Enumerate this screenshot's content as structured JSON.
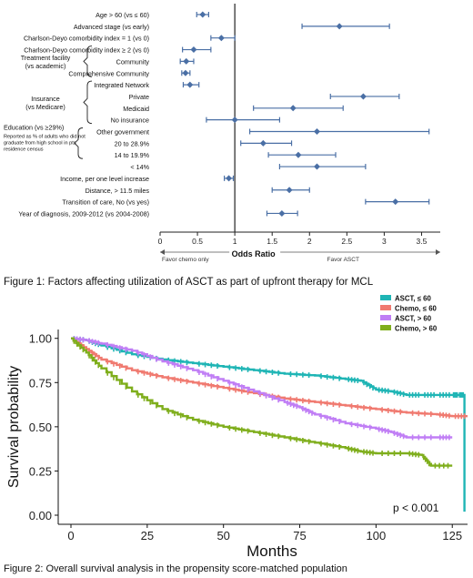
{
  "figure1": {
    "caption": "Figure 1: Factors affecting utilization of ASCT as part of upfront therapy for MCL",
    "chart_data": {
      "type": "forest",
      "xlabel": "Odds Ratio",
      "xlim": [
        0,
        3.75
      ],
      "xticks": [
        "0",
        "0.5",
        "1",
        "1.5",
        "2",
        "2.5",
        "3",
        "3.5"
      ],
      "reference_line": 1,
      "favor_left": "Favor chemo only",
      "favor_right": "Favor ASCT",
      "groups": [
        {
          "label": "Treatment facility\n(vs academic)",
          "rows": [
            3,
            5
          ]
        },
        {
          "label": "Insurance\n(vs Medicare)",
          "rows": [
            6,
            9
          ]
        },
        {
          "label": "Education (vs ≥29%)\nReported as % of adults who did not\ngraduate from high school in pts\nresidence census",
          "rows": [
            10,
            12
          ]
        }
      ],
      "rows": [
        {
          "label": "Age > 60 (vs ≤ 60)",
          "or": 0.57,
          "lo": 0.49,
          "hi": 0.65
        },
        {
          "label": "Advanced stage (vs early)",
          "or": 2.4,
          "lo": 1.9,
          "hi": 3.07
        },
        {
          "label": "Charlson-Deyo comorbidity index = 1 (vs 0)",
          "or": 0.82,
          "lo": 0.68,
          "hi": 1.0
        },
        {
          "label": "Charlson-Deyo comorbidity index ≥ 2 (vs 0)",
          "or": 0.45,
          "lo": 0.3,
          "hi": 0.68
        },
        {
          "label": "Community",
          "or": 0.35,
          "lo": 0.27,
          "hi": 0.45
        },
        {
          "label": "Comprehensive Community",
          "or": 0.34,
          "lo": 0.29,
          "hi": 0.4
        },
        {
          "label": "Integrated Network",
          "or": 0.4,
          "lo": 0.31,
          "hi": 0.52
        },
        {
          "label": "Private",
          "or": 2.72,
          "lo": 2.28,
          "hi": 3.2
        },
        {
          "label": "Medicaid",
          "or": 1.78,
          "lo": 1.25,
          "hi": 2.45
        },
        {
          "label": "No insurance",
          "or": 1.0,
          "lo": 0.62,
          "hi": 1.6
        },
        {
          "label": "Other government",
          "or": 2.1,
          "lo": 1.2,
          "hi": 3.6
        },
        {
          "label": "20 to 28.9%",
          "or": 1.38,
          "lo": 1.08,
          "hi": 1.76
        },
        {
          "label": "14 to 19.9%",
          "or": 1.85,
          "lo": 1.45,
          "hi": 2.35
        },
        {
          "label": "< 14%",
          "or": 2.1,
          "lo": 1.6,
          "hi": 2.75
        },
        {
          "label": "Income, per one level increase",
          "or": 0.92,
          "lo": 0.86,
          "hi": 0.98
        },
        {
          "label": "Distance, > 11.5 miles",
          "or": 1.73,
          "lo": 1.5,
          "hi": 2.0
        },
        {
          "label": "Transition of care, No (vs yes)",
          "or": 3.15,
          "lo": 2.75,
          "hi": 3.6
        },
        {
          "label": "Year of diagnosis, 2009-2012 (vs 2004-2008)",
          "or": 1.63,
          "lo": 1.43,
          "hi": 1.84
        }
      ],
      "colors": {
        "point": "#4a6fa5",
        "line": "#4a6fa5",
        "ref": "#222222"
      }
    }
  },
  "figure2": {
    "caption": "Figure 2: Overall survival analysis in the propensity score-matched population",
    "chart_data": {
      "type": "line",
      "xlabel": "Months",
      "ylabel": "Survival probability",
      "xlim": [
        0,
        130
      ],
      "ylim": [
        0,
        1.05
      ],
      "xticks": [
        "0",
        "25",
        "50",
        "75",
        "100",
        "125"
      ],
      "yticks": [
        "0.00",
        "0.25",
        "0.50",
        "0.75",
        "1.00"
      ],
      "annotation": "p < 0.001",
      "legend_position": "top-right",
      "series": [
        {
          "name": "ASCT, ≤ 60",
          "color": "#1fb5b5",
          "x": [
            0,
            5,
            10,
            20,
            30,
            40,
            50,
            60,
            70,
            80,
            90,
            95,
            100,
            105,
            110,
            115,
            120,
            125,
            127,
            129,
            129
          ],
          "y": [
            1.0,
            0.99,
            0.96,
            0.91,
            0.88,
            0.86,
            0.84,
            0.82,
            0.8,
            0.79,
            0.77,
            0.76,
            0.71,
            0.7,
            0.68,
            0.68,
            0.68,
            0.68,
            0.68,
            0.68,
            0.02
          ]
        },
        {
          "name": "Chemo, ≤ 60",
          "color": "#f07a70",
          "x": [
            0,
            5,
            10,
            20,
            30,
            40,
            50,
            60,
            70,
            80,
            90,
            100,
            110,
            120,
            125,
            130
          ],
          "y": [
            1.0,
            0.94,
            0.88,
            0.82,
            0.78,
            0.75,
            0.72,
            0.69,
            0.66,
            0.64,
            0.62,
            0.6,
            0.58,
            0.57,
            0.56,
            0.56
          ]
        },
        {
          "name": "ASCT, > 60",
          "color": "#c07ef5",
          "x": [
            0,
            5,
            10,
            20,
            30,
            40,
            50,
            60,
            70,
            75,
            80,
            90,
            100,
            105,
            110,
            120,
            125
          ],
          "y": [
            1.0,
            0.99,
            0.97,
            0.93,
            0.87,
            0.82,
            0.76,
            0.7,
            0.64,
            0.61,
            0.57,
            0.52,
            0.49,
            0.47,
            0.44,
            0.44,
            0.44
          ]
        },
        {
          "name": "Chemo, > 60",
          "color": "#7fae1c",
          "x": [
            0,
            5,
            10,
            20,
            30,
            40,
            50,
            60,
            70,
            80,
            90,
            95,
            100,
            110,
            115,
            118,
            125
          ],
          "y": [
            1.0,
            0.92,
            0.83,
            0.7,
            0.6,
            0.54,
            0.5,
            0.47,
            0.44,
            0.41,
            0.38,
            0.36,
            0.35,
            0.35,
            0.34,
            0.28,
            0.28
          ]
        }
      ]
    }
  }
}
